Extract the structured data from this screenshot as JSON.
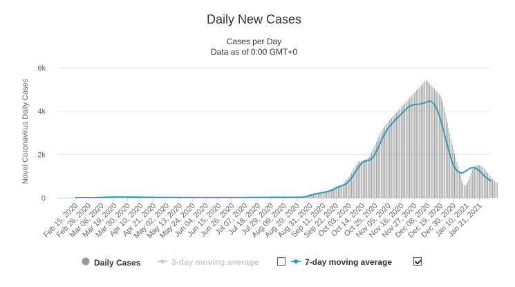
{
  "chart_data": {
    "type": "bar",
    "title": "Daily New Cases",
    "subtitle_line1": "Cases per Day",
    "subtitle_line2": "Data as of 0:00 GMT+0",
    "ylabel": "Novel Coronavirus Daily Cases",
    "ylim": [
      0,
      6000
    ],
    "yticks": [
      0,
      2000,
      4000,
      6000
    ],
    "ytick_labels": [
      "0",
      "2k",
      "4k",
      "6k"
    ],
    "xtick_labels": [
      "Feb 15, 2020",
      "Feb 26, 2020",
      "Mar 08, 2020",
      "Mar 19, 2020",
      "Mar 30, 2020",
      "Apr 10, 2020",
      "Apr 21, 2020",
      "May 02, 2020",
      "May 13, 2020",
      "May 24, 2020",
      "Jun 04, 2020",
      "Jun 15, 2020",
      "Jun 26, 2020",
      "Jul 07, 2020",
      "Jul 18, 2020",
      "Jul 29, 2020",
      "Aug 09, 2020",
      "Aug 20, 2020",
      "Aug 31, 2020",
      "Sep 11, 2020",
      "Sep 22, 2020",
      "Oct 03, 2020",
      "Oct 14, 2020",
      "Oct 25, 2020",
      "Nov 05, 2020",
      "Nov 16, 2020",
      "Nov 27, 2020",
      "Dec 08, 2020",
      "Dec 19, 2020",
      "Dec 30, 2020",
      "Jan 10, 2021",
      "Jan 21, 2021"
    ],
    "n_days": 351,
    "day_interval": 11,
    "series": [
      {
        "name": "Daily Cases",
        "color": "#999999",
        "values": [
          0,
          0,
          0,
          0,
          0,
          0,
          0,
          0,
          0,
          0,
          0,
          1,
          0,
          1,
          2,
          3,
          5,
          8,
          12,
          15,
          18,
          22,
          25,
          28,
          30,
          32,
          35,
          38,
          40,
          41,
          42,
          43,
          45,
          44,
          43,
          42,
          41,
          40,
          40,
          39,
          38,
          37,
          36,
          35,
          34,
          33,
          32,
          31,
          30,
          30,
          29,
          28,
          27,
          26,
          25,
          25,
          24,
          23,
          22,
          22,
          21,
          20,
          20,
          19,
          18,
          18,
          17,
          17,
          16,
          16,
          15,
          15,
          15,
          14,
          14,
          14,
          13,
          13,
          13,
          12,
          12,
          12,
          12,
          11,
          11,
          11,
          11,
          11,
          10,
          10,
          10,
          10,
          10,
          10,
          10,
          10,
          10,
          10,
          10,
          10,
          10,
          10,
          10,
          10,
          10,
          10,
          10,
          10,
          10,
          10,
          10,
          10,
          10,
          10,
          10,
          10,
          10,
          10,
          10,
          10,
          10,
          10,
          10,
          10,
          10,
          10,
          10,
          10,
          10,
          10,
          10,
          10,
          10,
          10,
          10,
          10,
          10,
          10,
          10,
          10,
          10,
          10,
          10,
          11,
          11,
          11,
          12,
          12,
          12,
          13,
          13,
          13,
          14,
          14,
          14,
          15,
          15,
          16,
          16,
          17,
          17,
          18,
          18,
          19,
          19,
          20,
          20,
          20,
          20,
          20,
          20,
          20,
          20,
          20,
          20,
          20,
          20,
          20,
          20,
          20,
          20,
          20,
          20,
          20,
          21,
          22,
          24,
          27,
          31,
          36,
          43,
          51,
          61,
          73,
          87,
          104,
          124,
          148,
          172,
          185,
          195,
          200,
          210,
          220,
          230,
          240,
          250,
          260,
          270,
          280,
          290,
          300,
          320,
          340,
          360,
          380,
          400,
          430,
          460,
          490,
          520,
          540,
          560,
          580,
          600,
          620,
          650,
          700,
          760,
          830,
          900,
          980,
          1060,
          1150,
          1240,
          1330,
          1420,
          1510,
          1590,
          1650,
          1690,
          1710,
          1720,
          1730,
          1740,
          1760,
          1790,
          1840,
          1910,
          2000,
          2100,
          2220,
          2340,
          2460,
          2580,
          2700,
          2810,
          2920,
          3020,
          3120,
          3210,
          3300,
          3380,
          3450,
          3520,
          3580,
          3640,
          3700,
          3760,
          3820,
          3880,
          3940,
          4000,
          4060,
          4120,
          4180,
          4240,
          4300,
          4360,
          4420,
          4480,
          4540,
          4600,
          4660,
          4720,
          4780,
          4840,
          4900,
          4960,
          5020,
          5080,
          5140,
          5200,
          5260,
          5320,
          5380,
          5440,
          5380,
          5320,
          5260,
          5200,
          5140,
          5080,
          5020,
          4960,
          4900,
          4840,
          4780,
          4720,
          4600,
          4400,
          4200,
          3950,
          3700,
          3450,
          3200,
          2950,
          2700,
          2450,
          2250,
          2050,
          1850,
          1650,
          1450,
          1250,
          1050,
          850,
          700,
          600,
          560,
          600,
          700,
          850,
          1000,
          1150,
          1300,
          1400,
          1450,
          1500,
          1500,
          1500,
          1500,
          1480,
          1450,
          1400,
          1340,
          1280,
          1210,
          1140,
          1070,
          1000,
          930,
          870,
          810,
          760,
          720,
          700
        ]
      },
      {
        "name": "3-day moving average",
        "color": "#cccccc",
        "visible": false
      },
      {
        "name": "7-day moving average",
        "color": "#2f9ab5",
        "visible": true,
        "values": [
          0,
          0,
          0,
          0,
          0,
          0,
          0,
          0,
          0,
          0,
          0,
          0,
          0,
          0,
          1,
          1,
          2,
          3,
          4,
          6,
          8,
          11,
          13,
          16,
          19,
          21,
          24,
          27,
          29,
          31,
          33,
          35,
          37,
          38,
          39,
          40,
          41,
          41,
          41,
          41,
          40,
          40,
          39,
          38,
          37,
          36,
          35,
          34,
          33,
          32,
          31,
          31,
          30,
          29,
          28,
          27,
          26,
          25,
          24,
          23,
          23,
          22,
          21,
          20,
          20,
          19,
          18,
          18,
          17,
          17,
          16,
          16,
          15,
          15,
          15,
          14,
          14,
          13,
          13,
          13,
          12,
          12,
          12,
          12,
          11,
          11,
          11,
          11,
          11,
          10,
          10,
          10,
          10,
          10,
          10,
          10,
          10,
          10,
          10,
          10,
          10,
          10,
          10,
          10,
          10,
          10,
          10,
          10,
          10,
          10,
          10,
          10,
          10,
          10,
          10,
          10,
          10,
          10,
          10,
          10,
          10,
          10,
          10,
          10,
          10,
          10,
          10,
          10,
          10,
          10,
          10,
          10,
          10,
          10,
          10,
          10,
          10,
          10,
          10,
          10,
          10,
          10,
          10,
          10,
          10,
          11,
          11,
          11,
          11,
          12,
          12,
          12,
          13,
          13,
          13,
          14,
          14,
          15,
          15,
          16,
          16,
          17,
          17,
          18,
          18,
          19,
          19,
          19,
          20,
          20,
          20,
          20,
          20,
          20,
          20,
          20,
          20,
          20,
          20,
          20,
          20,
          20,
          20,
          20,
          20,
          21,
          21,
          22,
          24,
          26,
          29,
          33,
          38,
          45,
          53,
          62,
          74,
          88,
          104,
          122,
          140,
          160,
          175,
          185,
          195,
          205,
          215,
          225,
          235,
          245,
          255,
          265,
          275,
          290,
          305,
          320,
          340,
          360,
          385,
          410,
          440,
          470,
          500,
          520,
          540,
          560,
          580,
          600,
          625,
          665,
          715,
          775,
          845,
          920,
          995,
          1075,
          1160,
          1245,
          1330,
          1415,
          1495,
          1565,
          1620,
          1660,
          1685,
          1700,
          1710,
          1720,
          1735,
          1760,
          1800,
          1860,
          1940,
          2030,
          2140,
          2255,
          2375,
          2495,
          2615,
          2730,
          2840,
          2940,
          3040,
          3130,
          3215,
          3290,
          3360,
          3420,
          3480,
          3535,
          3590,
          3645,
          3700,
          3755,
          3810,
          3865,
          3920,
          3975,
          4030,
          4085,
          4135,
          4180,
          4220,
          4250,
          4275,
          4290,
          4300,
          4305,
          4310,
          4315,
          4320,
          4330,
          4340,
          4355,
          4370,
          4390,
          4410,
          4430,
          4450,
          4460,
          4450,
          4420,
          4370,
          4300,
          4210,
          4100,
          3970,
          3820,
          3650,
          3460,
          3260,
          3050,
          2830,
          2610,
          2400,
          2200,
          2010,
          1830,
          1670,
          1530,
          1410,
          1320,
          1250,
          1200,
          1170,
          1150,
          1150,
          1160,
          1180,
          1210,
          1250,
          1290,
          1330,
          1360,
          1380,
          1390,
          1390,
          1380,
          1360,
          1330,
          1290,
          1240,
          1190,
          1130,
          1070,
          1010,
          960,
          910,
          870,
          830,
          800,
          780
        ]
      }
    ]
  },
  "legend": {
    "items": [
      {
        "label": "Daily Cases"
      },
      {
        "label": "3-day moving average"
      },
      {
        "label": "7-day moving average"
      }
    ]
  }
}
